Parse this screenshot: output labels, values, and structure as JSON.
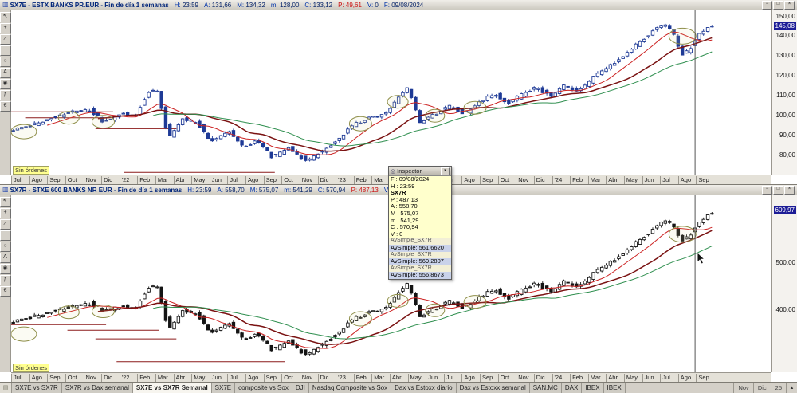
{
  "app": {
    "background": "#d4d0c8"
  },
  "months": [
    "Jul",
    "Ago",
    "Sep",
    "Oct",
    "Nov",
    "Dic",
    "'22",
    "Feb",
    "Mar",
    "Abr",
    "May",
    "Jun",
    "Jul",
    "Ago",
    "Sep",
    "Oct",
    "Nov",
    "Dic",
    "'23",
    "Feb",
    "Mar",
    "Abr",
    "May",
    "Jun",
    "Jul",
    "Ago",
    "Sep",
    "Oct",
    "Nov",
    "Dic",
    "'24",
    "Feb",
    "Mar",
    "Abr",
    "May",
    "Jun",
    "Jul",
    "Ago",
    "Sep"
  ],
  "toolbar_icons": [
    {
      "name": "pointer-icon",
      "glyph": "↖"
    },
    {
      "name": "crosshair-icon",
      "glyph": "+"
    },
    {
      "name": "trendline-icon",
      "glyph": "∕"
    },
    {
      "name": "horizontal-line-icon",
      "glyph": "−"
    },
    {
      "name": "ellipse-icon",
      "glyph": "○"
    },
    {
      "name": "text-icon",
      "glyph": "A"
    },
    {
      "name": "zoom-icon",
      "glyph": "◉"
    },
    {
      "name": "indicator-icon",
      "glyph": "ƒ"
    },
    {
      "name": "order-icon",
      "glyph": "€"
    }
  ],
  "window_buttons": [
    "−",
    "□",
    "×"
  ],
  "panels": [
    {
      "title": "SX7E - ESTX BANKS PR.EUR - Fin de día 1 semanas",
      "fields": [
        {
          "k": "H:",
          "v": "23:59",
          "red": false
        },
        {
          "k": "A:",
          "v": "131,66",
          "red": false
        },
        {
          "k": "M:",
          "v": "134,32",
          "red": false
        },
        {
          "k": "m:",
          "v": "128,00",
          "red": false
        },
        {
          "k": "C:",
          "v": "133,12",
          "red": false
        },
        {
          "k": "P:",
          "v": "49,61",
          "red": true
        },
        {
          "k": "V:",
          "v": "0",
          "red": false
        },
        {
          "k": "F:",
          "v": "09/08/2024",
          "red": false
        }
      ],
      "no_orders": "Sin órdenes",
      "price_tag": {
        "text": "145,08",
        "price": 145.08
      },
      "y_labels": [
        {
          "text": "150,00",
          "price": 150
        },
        {
          "text": "140,00",
          "price": 140
        },
        {
          "text": "130,00",
          "price": 130
        },
        {
          "text": "120,00",
          "price": 120
        },
        {
          "text": "110,00",
          "price": 110
        },
        {
          "text": "100,00",
          "price": 100
        },
        {
          "text": "90,00",
          "price": 90
        },
        {
          "text": "80,00",
          "price": 80
        }
      ],
      "chart": {
        "type": "candlestick",
        "ymin": 70,
        "ymax": 153,
        "candle_color": "#1e3a96",
        "ma_colors": [
          "#cc2222",
          "#7a1212",
          "#2f8f4f"
        ],
        "anchors": [
          [
            0,
            92
          ],
          [
            0.03,
            95
          ],
          [
            0.06,
            99
          ],
          [
            0.09,
            102
          ],
          [
            0.115,
            103
          ],
          [
            0.135,
            97
          ],
          [
            0.16,
            101
          ],
          [
            0.18,
            100
          ],
          [
            0.2,
            112
          ],
          [
            0.212,
            113
          ],
          [
            0.228,
            89
          ],
          [
            0.248,
            99
          ],
          [
            0.27,
            96
          ],
          [
            0.29,
            87
          ],
          [
            0.315,
            92
          ],
          [
            0.335,
            84
          ],
          [
            0.355,
            88
          ],
          [
            0.377,
            79
          ],
          [
            0.4,
            84
          ],
          [
            0.425,
            77
          ],
          [
            0.448,
            82
          ],
          [
            0.468,
            87
          ],
          [
            0.49,
            95
          ],
          [
            0.515,
            99
          ],
          [
            0.54,
            101
          ],
          [
            0.558,
            110
          ],
          [
            0.572,
            114
          ],
          [
            0.588,
            96
          ],
          [
            0.61,
            101
          ],
          [
            0.632,
            105
          ],
          [
            0.652,
            101
          ],
          [
            0.672,
            107
          ],
          [
            0.695,
            111
          ],
          [
            0.715,
            106
          ],
          [
            0.735,
            111
          ],
          [
            0.755,
            114
          ],
          [
            0.775,
            110
          ],
          [
            0.795,
            115
          ],
          [
            0.815,
            112
          ],
          [
            0.835,
            119
          ],
          [
            0.855,
            124
          ],
          [
            0.875,
            129
          ],
          [
            0.895,
            135
          ],
          [
            0.91,
            139
          ],
          [
            0.925,
            144
          ],
          [
            0.94,
            146
          ],
          [
            0.952,
            140
          ],
          [
            0.963,
            131
          ],
          [
            0.975,
            134
          ],
          [
            0.988,
            141
          ],
          [
            1,
            145.08
          ]
        ],
        "ellipses": [
          [
            0.018,
            92,
            16,
            9
          ],
          [
            0.082,
            99,
            13,
            8
          ],
          [
            0.131,
            97,
            14,
            8
          ],
          [
            0.497,
            96,
            14,
            9
          ],
          [
            0.55,
            107,
            13,
            8
          ],
          [
            0.603,
            100,
            12,
            8
          ],
          [
            0.66,
            104,
            14,
            8
          ],
          [
            0.955,
            140,
            17,
            10
          ]
        ],
        "hlines": [
          [
            0,
            0.145,
            102
          ],
          [
            0.02,
            0.145,
            99
          ],
          [
            0.12,
            0.235,
            93.5
          ],
          [
            0.16,
            0.375,
            71.5
          ]
        ]
      }
    },
    {
      "title": "SX7R - STXE 600 BANKS NR EUR - Fin de día 1 semanas",
      "fields": [
        {
          "k": "H:",
          "v": "23:59",
          "red": false
        },
        {
          "k": "A:",
          "v": "558,70",
          "red": false
        },
        {
          "k": "M:",
          "v": "575,07",
          "red": false
        },
        {
          "k": "m:",
          "v": "541,29",
          "red": false
        },
        {
          "k": "C:",
          "v": "570,94",
          "red": false
        },
        {
          "k": "P:",
          "v": "487,13",
          "red": true
        },
        {
          "k": "V:",
          "v": "0",
          "red": false
        },
        {
          "k": "F:",
          "v": "09/08/2024",
          "red": false
        }
      ],
      "no_orders": "Sin órdenes",
      "price_tag": {
        "text": "609,97",
        "price": 609.97
      },
      "y_labels": [
        {
          "text": "500,00",
          "price": 500
        },
        {
          "text": "400,00",
          "price": 400
        }
      ],
      "chart": {
        "type": "candlestick",
        "ymin": 268,
        "ymax": 642,
        "candle_color": "#141414",
        "ma_colors": [
          "#cc2222",
          "#7a1212",
          "#2f8f4f"
        ],
        "anchors": [
          [
            0,
            372
          ],
          [
            0.03,
            385
          ],
          [
            0.06,
            398
          ],
          [
            0.09,
            408
          ],
          [
            0.115,
            415
          ],
          [
            0.135,
            400
          ],
          [
            0.16,
            408
          ],
          [
            0.18,
            405
          ],
          [
            0.2,
            448
          ],
          [
            0.212,
            452
          ],
          [
            0.228,
            360
          ],
          [
            0.248,
            402
          ],
          [
            0.27,
            390
          ],
          [
            0.29,
            352
          ],
          [
            0.315,
            372
          ],
          [
            0.335,
            338
          ],
          [
            0.355,
            352
          ],
          [
            0.377,
            316
          ],
          [
            0.4,
            336
          ],
          [
            0.425,
            305
          ],
          [
            0.448,
            328
          ],
          [
            0.468,
            348
          ],
          [
            0.49,
            380
          ],
          [
            0.515,
            396
          ],
          [
            0.54,
            404
          ],
          [
            0.558,
            440
          ],
          [
            0.572,
            456
          ],
          [
            0.588,
            384
          ],
          [
            0.61,
            404
          ],
          [
            0.632,
            420
          ],
          [
            0.652,
            404
          ],
          [
            0.672,
            428
          ],
          [
            0.695,
            444
          ],
          [
            0.715,
            424
          ],
          [
            0.735,
            444
          ],
          [
            0.755,
            456
          ],
          [
            0.775,
            440
          ],
          [
            0.795,
            460
          ],
          [
            0.815,
            448
          ],
          [
            0.835,
            476
          ],
          [
            0.855,
            496
          ],
          [
            0.875,
            516
          ],
          [
            0.895,
            540
          ],
          [
            0.91,
            556
          ],
          [
            0.925,
            576
          ],
          [
            0.94,
            590
          ],
          [
            0.952,
            572
          ],
          [
            0.963,
            548
          ],
          [
            0.975,
            560
          ],
          [
            0.988,
            584
          ],
          [
            1,
            604
          ]
        ],
        "ellipses": [
          [
            0.018,
            350,
            16,
            9
          ],
          [
            0.082,
            396,
            13,
            8
          ],
          [
            0.131,
            398,
            14,
            8
          ],
          [
            0.497,
            382,
            14,
            9
          ],
          [
            0.55,
            420,
            13,
            8
          ],
          [
            0.603,
            400,
            12,
            8
          ],
          [
            0.66,
            418,
            14,
            8
          ],
          [
            0.955,
            560,
            17,
            10
          ]
        ],
        "hlines": [
          [
            0,
            0.135,
            370
          ],
          [
            0.08,
            0.21,
            358
          ],
          [
            0.12,
            0.235,
            340
          ],
          [
            0.15,
            0.39,
            292
          ]
        ]
      }
    }
  ],
  "inspector": {
    "title": "Inspector",
    "rows": [
      {
        "t": "plain",
        "label": "F :",
        "value": "09/08/2024"
      },
      {
        "t": "plain",
        "label": "H :",
        "value": "23:59"
      },
      {
        "t": "section",
        "label": "SX7R",
        "value": ""
      },
      {
        "t": "plain",
        "label": "P :",
        "value": "487,13"
      },
      {
        "t": "plain",
        "label": "A :",
        "value": "558,70"
      },
      {
        "t": "plain",
        "label": "M :",
        "value": "575,07"
      },
      {
        "t": "plain",
        "label": "m :",
        "value": "541,29"
      },
      {
        "t": "plain",
        "label": "C :",
        "value": "570,94"
      },
      {
        "t": "plain",
        "label": "V :",
        "value": "0"
      },
      {
        "t": "subsection",
        "label": "AvSimple_SX7R",
        "value": ""
      },
      {
        "t": "highlight",
        "label": "AvSimple:",
        "value": "561,6620"
      },
      {
        "t": "subsection",
        "label": "AvSimple_SX7R",
        "value": ""
      },
      {
        "t": "highlight",
        "label": "AvSimple:",
        "value": "569,2807"
      },
      {
        "t": "subsection",
        "label": "AvSimple_SX7R",
        "value": ""
      },
      {
        "t": "highlight",
        "label": "AvSimple:",
        "value": "556,8673"
      }
    ]
  },
  "tabbar": {
    "tabs": [
      {
        "label": "SX7E vs SX7R",
        "active": false
      },
      {
        "label": "SX7R vs Dax semanal",
        "active": false
      },
      {
        "label": "SX7E vs SX7R Semanal",
        "active": true
      },
      {
        "label": "SX7E",
        "active": false
      },
      {
        "label": "composite vs Sox",
        "active": false
      },
      {
        "label": "DJI",
        "active": false
      },
      {
        "label": "Nasdaq Composite vs Sox",
        "active": false
      },
      {
        "label": "Dax vs Estoxx diario",
        "active": false
      },
      {
        "label": "Dax vs Estoxx semanal",
        "active": false
      },
      {
        "label": "SAN.MC",
        "active": false
      },
      {
        "label": "DAX",
        "active": false
      },
      {
        "label": "IBEX",
        "active": false
      },
      {
        "label": "IBEX",
        "active": false
      }
    ],
    "right_labels": [
      "Nov",
      "Dic",
      "25"
    ]
  }
}
